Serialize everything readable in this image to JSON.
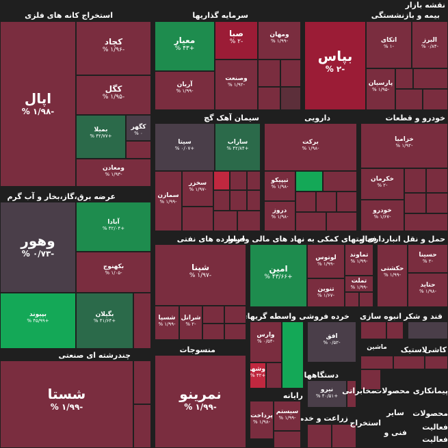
{
  "title": "نقشه بازار",
  "colors": {
    "background": "#1f1f1f",
    "positive": "#1e8c4e",
    "negative": "#7a2d3f"
  },
  "sectors": {
    "metals": "استخراج کانه های فلزی",
    "insurance": "بیمه و بازنشستگی",
    "investment": "سرمایه گذاریها",
    "utilities": "عرضه برق،گاز،بخار و آب گرم",
    "cement": "سیمان آهک گچ",
    "pharma": "دارویی",
    "auto": "خودرو و قطعات",
    "transport": "حمل و نقل انبارداری و",
    "financial": "فعالیتهای کمکی به نهاد های مالی واسط",
    "refinery": "فراورده های نفتی",
    "building": "انبوه سازی",
    "sugar": "قند و شکر",
    "brokers": "واسطه گریهای",
    "retail": "خرده فروشی",
    "multi": "چندرشته ای صنعتی",
    "textile": "منسوجات",
    "devices": "دستگاههای برقی",
    "computer": "رایانه",
    "agri": "زراعت و خدمات",
    "tiles": "کاشی",
    "rubber": "لاستیک",
    "tech": "فنی و",
    "cont": "پیمانکاری",
    "prod": "محصولات",
    "media": "محصولات",
    "mkt": "مخابراتی",
    "other1": "سایر",
    "other2": "استخراج",
    "food": "فعالیت",
    "aux": "فعالیت"
  },
  "stocks": {
    "fapal": {
      "name": "اپال",
      "pct": "% ۱/۹۸-"
    },
    "kchad": {
      "name": "کچاد",
      "pct": "% ۱/۹۶-"
    },
    "kgol": {
      "name": "کگل",
      "pct": "% ۱/۹۵-"
    },
    "bemila": {
      "name": "بمیلا",
      "pct": "% ۴۲/۷۷+"
    },
    "kgohar": {
      "name": "کگهر",
      "pct": "% ۰"
    },
    "vamaaden": {
      "name": "ومعادن",
      "pct": "% ۱/۹۳-"
    },
    "vahoor": {
      "name": "وهور",
      "pct": "% ۰/۷۳-"
    },
    "abada": {
      "name": "آبادا",
      "pct": "% ۴۲/۰۴+"
    },
    "bkahnoj": {
      "name": "بکهنوج",
      "pct": "% ۱/۰۵-"
    },
    "bpivand": {
      "name": "بپیوند",
      "pct": "% ۴۵/۹۹+"
    },
    "bgilan": {
      "name": "بگیلان",
      "pct": "% ۴۱/۶۴+"
    },
    "bpas": {
      "name": "بپاس",
      "pct": "% ۲-"
    },
    "atkai": {
      "name": "اتکای",
      "pct": "% ۱-"
    },
    "alborz": {
      "name": "البرز",
      "pct": "% ۰/۸۴-"
    },
    "parsian": {
      "name": "پارسیان",
      "pct": "% ۱/۹۵-"
    },
    "meyar": {
      "name": "معیار",
      "pct": "% ۴۳+"
    },
    "saba": {
      "name": "صبا",
      "pct": "% ۲-"
    },
    "vmahan": {
      "name": "ومهان",
      "pct": "% ۱/۹۹-"
    },
    "arian": {
      "name": "آریان",
      "pct": "% ۱/۹۹-"
    },
    "vsanat": {
      "name": "وصنعت",
      "pct": "% ۱/۹۲-"
    },
    "sita": {
      "name": "سیتا",
      "pct": "% ۰/۰۷+"
    },
    "sarab": {
      "name": "ساراب",
      "pct": "% ۴۲/۸۴+"
    },
    "skhaz": {
      "name": "سخزر",
      "pct": "% ۱/۹۷-"
    },
    "samazan": {
      "name": "سمازن",
      "pct": "% ۱/۹۹-"
    },
    "barkat": {
      "name": "برکت",
      "pct": "% ۱/۹۸-"
    },
    "tipico": {
      "name": "تیپیکو",
      "pct": "% ۱/۹۸-"
    },
    "droz": {
      "name": "دروز",
      "pct": "% ۱/۹۸-"
    },
    "khazamia": {
      "name": "خزامیا",
      "pct": "% ۱/۹۲-"
    },
    "khkarman": {
      "name": "خکرمان",
      "pct": "% ۲-"
    },
    "khodro": {
      "name": "خودرو",
      "pct": "% ۱/۶۷-"
    },
    "hasina": {
      "name": "حسینا",
      "pct": "% ۲-"
    },
    "haksheti": {
      "name": "حکشتی",
      "pct": "% ۱/۹۹-"
    },
    "hatid": {
      "name": "حتاید",
      "pct": "% ۱/۹۸-"
    },
    "shepna": {
      "name": "شپنا",
      "pct": "% ۱/۹۷-"
    },
    "shasia": {
      "name": "شسپا",
      "pct": "% ۱/۹۹-"
    },
    "sharan": {
      "name": "شرانل",
      "pct": "% ۲-"
    },
    "amin": {
      "name": "امین",
      "pct": "% ۴۳/۶۶+"
    },
    "lotus": {
      "name": "لوتوس",
      "pct": "% ۱/۹۹-"
    },
    "tamavon": {
      "name": "تماوند",
      "pct": "% ۱/۹۹-"
    },
    "tnovin": {
      "name": "تنوین",
      "pct": "% ۱/۶۷-"
    },
    "tmellat": {
      "name": "تملت",
      "pct": "% ۱/۹۹-"
    },
    "varas": {
      "name": "وارس",
      "pct": "% ۰/۵۴-"
    },
    "vashahr": {
      "name": "وشهر",
      "pct": "% ۴۲+"
    },
    "afgh": {
      "name": "افق",
      "pct": "% ۰/۵۲-"
    },
    "shasta": {
      "name": "شستا",
      "pct": "% ۱/۹۹-"
    },
    "namrino": {
      "name": "نمرینو",
      "pct": "% ۱/۹۹-"
    },
    "bniro": {
      "name": "نیرو",
      "pct": "% ۴۰/۵۱+"
    },
    "sistem": {
      "name": "سیستم",
      "pct": "% ۱/۹۹-"
    },
    "pardakht": {
      "name": "پرداخت",
      "pct": "% ۱/۹۸-"
    },
    "machin": {
      "name": "ماشین",
      "pct": ""
    }
  }
}
